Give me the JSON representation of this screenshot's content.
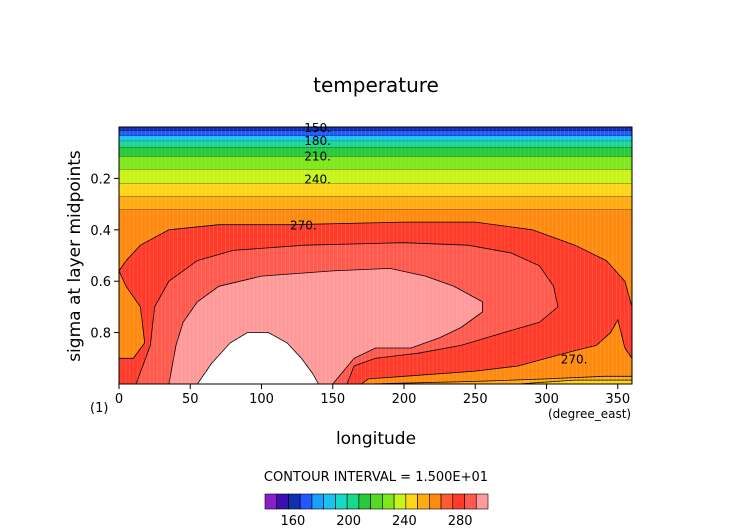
{
  "chart_data": {
    "type": "heatmap",
    "title": "temperature",
    "xlabel": "longitude",
    "ylabel": "sigma at layer midpoints",
    "x_unit": "(degree_east)",
    "y_unit": "(1)",
    "xlim": [
      0,
      360
    ],
    "ylim": [
      1.0,
      0.0
    ],
    "x_ticks": [
      {
        "value": 0,
        "label": "0"
      },
      {
        "value": 50,
        "label": "50"
      },
      {
        "value": 100,
        "label": "100"
      },
      {
        "value": 150,
        "label": "150"
      },
      {
        "value": 200,
        "label": "200"
      },
      {
        "value": 250,
        "label": "250"
      },
      {
        "value": 300,
        "label": "300"
      },
      {
        "value": 350,
        "label": "350"
      }
    ],
    "y_ticks": [
      {
        "value": 0.2,
        "label": "0.2"
      },
      {
        "value": 0.4,
        "label": "0.4"
      },
      {
        "value": 0.6,
        "label": "0.6"
      },
      {
        "value": 0.8,
        "label": "0.8"
      }
    ],
    "contour_labels": [
      {
        "text": "150.",
        "x": 130,
        "y": 0.0
      },
      {
        "text": "180.",
        "x": 130,
        "y": 0.05
      },
      {
        "text": "210.",
        "x": 130,
        "y": 0.11
      },
      {
        "text": "240.",
        "x": 130,
        "y": 0.2
      },
      {
        "text": "270.",
        "x": 120,
        "y": 0.38
      },
      {
        "text": "270.",
        "x": 310,
        "y": 0.9
      }
    ],
    "contour_interval_text": "CONTOUR INTERVAL = 1.500E+01",
    "levels": [
      150,
      165,
      180,
      195,
      210,
      225,
      240,
      255,
      270,
      285
    ],
    "bands": [
      {
        "ymax": 0.015,
        "color": "#1030b0"
      },
      {
        "ymax": 0.035,
        "color": "#1f59ff"
      },
      {
        "ymax": 0.055,
        "color": "#19c2f0"
      },
      {
        "ymax": 0.08,
        "color": "#17d98f"
      },
      {
        "ymax": 0.115,
        "color": "#28c93a"
      },
      {
        "ymax": 0.165,
        "color": "#7ee81c"
      },
      {
        "ymax": 0.22,
        "color": "#c9f41a"
      },
      {
        "ymax": 0.27,
        "color": "#ffd51a"
      },
      {
        "ymax": 0.32,
        "color": "#ffac12"
      },
      {
        "ymax": 1.0,
        "color": "#ff8a10"
      }
    ],
    "regions": [
      {
        "level": 270,
        "color": "#ff3b2a",
        "points": [
          [
            0,
            0.56
          ],
          [
            5,
            0.52
          ],
          [
            15,
            0.46
          ],
          [
            35,
            0.4
          ],
          [
            70,
            0.38
          ],
          [
            120,
            0.38
          ],
          [
            200,
            0.37
          ],
          [
            250,
            0.37
          ],
          [
            290,
            0.4
          ],
          [
            320,
            0.46
          ],
          [
            342,
            0.52
          ],
          [
            355,
            0.6
          ],
          [
            360,
            0.7
          ],
          [
            360,
            0.9
          ],
          [
            355,
            0.86
          ],
          [
            350,
            0.75
          ],
          [
            345,
            0.8
          ],
          [
            335,
            0.85
          ],
          [
            320,
            0.87
          ],
          [
            300,
            0.9
          ],
          [
            280,
            0.93
          ],
          [
            250,
            0.95
          ],
          [
            200,
            0.97
          ],
          [
            175,
            0.98
          ],
          [
            170,
            1.0
          ],
          [
            0,
            1.0
          ],
          [
            0,
            0.9
          ],
          [
            10,
            0.9
          ],
          [
            18,
            0.84
          ],
          [
            15,
            0.7
          ],
          [
            5,
            0.62
          ]
        ]
      },
      {
        "level": 285,
        "color": "#ff5a4e",
        "points": [
          [
            12,
            1.0
          ],
          [
            22,
            0.85
          ],
          [
            25,
            0.7
          ],
          [
            35,
            0.6
          ],
          [
            55,
            0.52
          ],
          [
            80,
            0.48
          ],
          [
            130,
            0.46
          ],
          [
            200,
            0.45
          ],
          [
            245,
            0.46
          ],
          [
            275,
            0.49
          ],
          [
            295,
            0.54
          ],
          [
            305,
            0.62
          ],
          [
            308,
            0.7
          ],
          [
            295,
            0.76
          ],
          [
            270,
            0.8
          ],
          [
            240,
            0.85
          ],
          [
            210,
            0.88
          ],
          [
            180,
            0.9
          ],
          [
            165,
            0.93
          ],
          [
            160,
            1.0
          ]
        ]
      },
      {
        "level": 300,
        "color": "#ff9a9a",
        "points": [
          [
            35,
            1.0
          ],
          [
            40,
            0.85
          ],
          [
            45,
            0.76
          ],
          [
            55,
            0.68
          ],
          [
            70,
            0.62
          ],
          [
            100,
            0.58
          ],
          [
            150,
            0.56
          ],
          [
            190,
            0.55
          ],
          [
            215,
            0.58
          ],
          [
            235,
            0.62
          ],
          [
            255,
            0.68
          ],
          [
            255,
            0.72
          ],
          [
            240,
            0.78
          ],
          [
            225,
            0.82
          ],
          [
            205,
            0.86
          ],
          [
            180,
            0.86
          ],
          [
            165,
            0.9
          ],
          [
            150,
            1.0
          ]
        ]
      },
      {
        "level": 315,
        "color": "#ffffff",
        "points": [
          [
            55,
            1.0
          ],
          [
            65,
            0.92
          ],
          [
            78,
            0.84
          ],
          [
            90,
            0.8
          ],
          [
            105,
            0.8
          ],
          [
            118,
            0.84
          ],
          [
            128,
            0.9
          ],
          [
            136,
            0.96
          ],
          [
            140,
            1.0
          ]
        ]
      },
      {
        "level": 270,
        "color": "#ffac12",
        "points": [
          [
            175,
            1.0
          ],
          [
            250,
            0.99
          ],
          [
            300,
            0.98
          ],
          [
            340,
            0.97
          ],
          [
            360,
            0.97
          ],
          [
            360,
            1.0
          ]
        ]
      },
      {
        "level": 255,
        "color": "#ffd51a",
        "points": [
          [
            280,
            1.0
          ],
          [
            320,
            0.985
          ],
          [
            360,
            0.985
          ],
          [
            360,
            1.0
          ]
        ]
      }
    ],
    "colorbar": {
      "colors": [
        "#8a1fc9",
        "#3a10b0",
        "#1030b0",
        "#1f59ff",
        "#19a0ff",
        "#19c2f0",
        "#17d9c8",
        "#17d98f",
        "#28c93a",
        "#55d925",
        "#7ee81c",
        "#c9f41a",
        "#ffd51a",
        "#ffac12",
        "#ff8a10",
        "#ff5a30",
        "#ff3b2a",
        "#ff5a4e",
        "#ff9a9a"
      ],
      "labels": [
        {
          "value": 160,
          "label": "160"
        },
        {
          "value": 200,
          "label": "200"
        },
        {
          "value": 240,
          "label": "240"
        },
        {
          "value": 280,
          "label": "280"
        }
      ],
      "range": [
        140,
        300
      ]
    }
  }
}
